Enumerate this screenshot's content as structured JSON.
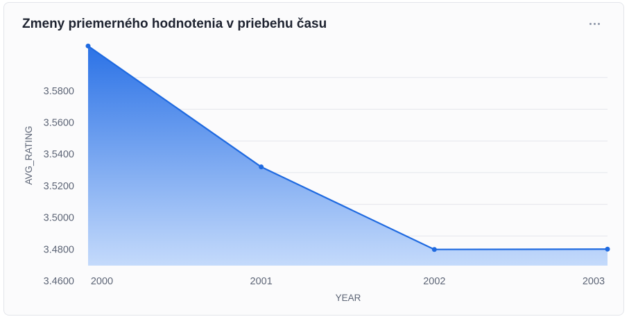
{
  "card": {
    "title": "Zmeny priemerného hodnotenia v priebehu času",
    "menu_icon": "more-horizontal-icon"
  },
  "colors": {
    "line": "#1f6ae0",
    "area_top": "#2b72e6",
    "area_bottom": "#c4dafb",
    "grid": "#e4e6eb",
    "text": "#5d6576",
    "title": "#1e2330"
  },
  "chart_data": {
    "type": "area",
    "title": "Zmeny priemerného hodnotenia v priebehu času",
    "xlabel": "YEAR",
    "ylabel": "AVG_RATING",
    "categories": [
      "2000",
      "2001",
      "2002",
      "2003"
    ],
    "series": [
      {
        "values": [
          3.5999,
          3.5236,
          3.4715,
          3.4717
        ]
      }
    ],
    "yticks": [
      "3.4600",
      "3.4800",
      "3.5000",
      "3.5200",
      "3.5400",
      "3.5600",
      "3.5800"
    ],
    "ylim": [
      3.46,
      3.6
    ],
    "grid": true,
    "legend": "none"
  }
}
